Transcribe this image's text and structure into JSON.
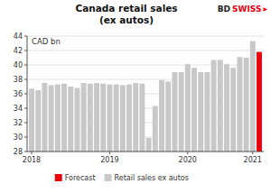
{
  "chart_data": {
    "type": "bar",
    "title": "Canada retail sales\n(ex autos)",
    "ylabel": "CAD bn",
    "categories": [
      "2018",
      null,
      null,
      null,
      null,
      null,
      null,
      null,
      null,
      null,
      null,
      null,
      "2019",
      null,
      null,
      null,
      null,
      null,
      null,
      null,
      null,
      null,
      null,
      null,
      "2020",
      null,
      null,
      null,
      null,
      null,
      null,
      null,
      null,
      null,
      "2021",
      null
    ],
    "series": [
      {
        "name": "Forecast",
        "color": "#e8000d",
        "values": [
          null,
          null,
          null,
          null,
          null,
          null,
          null,
          null,
          null,
          null,
          null,
          null,
          null,
          null,
          null,
          null,
          null,
          null,
          null,
          null,
          null,
          null,
          null,
          null,
          null,
          null,
          null,
          null,
          null,
          null,
          null,
          null,
          null,
          null,
          null,
          41.8
        ]
      },
      {
        "name": "Retail sales ex autos",
        "color": "#c8c8c8",
        "values": [
          36.7,
          36.5,
          37.5,
          37.2,
          37.3,
          37.4,
          37.0,
          36.8,
          37.5,
          37.4,
          37.5,
          37.4,
          37.3,
          37.3,
          37.2,
          37.3,
          37.5,
          37.4,
          29.9,
          34.3,
          37.9,
          37.7,
          39.0,
          39.0,
          40.1,
          39.6,
          39.0,
          39.0,
          40.7,
          40.7,
          40.1,
          39.6,
          41.1,
          41.0,
          43.3,
          null
        ]
      }
    ],
    "ylim": [
      28,
      44
    ],
    "yticks": [
      28,
      30,
      32,
      34,
      36,
      38,
      40,
      42,
      44
    ],
    "grid": true,
    "legend": "bottom",
    "annotations": [
      {
        "text": "BD",
        "color": "#222222"
      },
      {
        "text": "SWISS",
        "color": "#e8000d"
      },
      {
        "text": "▶",
        "color": "#e8000d"
      }
    ]
  }
}
